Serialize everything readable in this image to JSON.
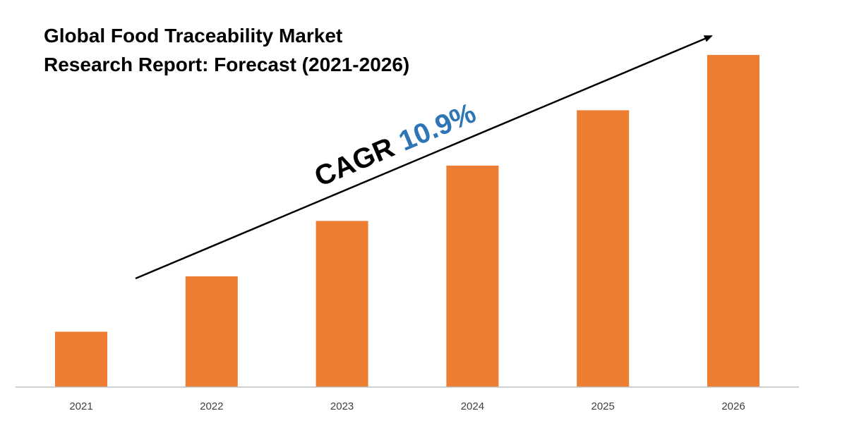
{
  "chart_data": {
    "type": "bar",
    "title_lines": [
      "Global Food Traceability Market",
      "Research Report: Forecast (2021-2026)"
    ],
    "categories": [
      "2021",
      "2022",
      "2023",
      "2024",
      "2025",
      "2026"
    ],
    "values": [
      1.0,
      2.0,
      3.0,
      4.0,
      5.0,
      6.0
    ],
    "ylim": [
      0,
      6.1
    ],
    "xlabel": "",
    "ylabel": "",
    "grid": false,
    "annotation": {
      "prefix": "CAGR",
      "value": "10.9%"
    },
    "colors": {
      "bar": "#ED7D31",
      "axis": "#BFBFBF",
      "arrow": "#000000",
      "cagr_prefix": "#000000",
      "cagr_value": "#2E75B6"
    }
  }
}
